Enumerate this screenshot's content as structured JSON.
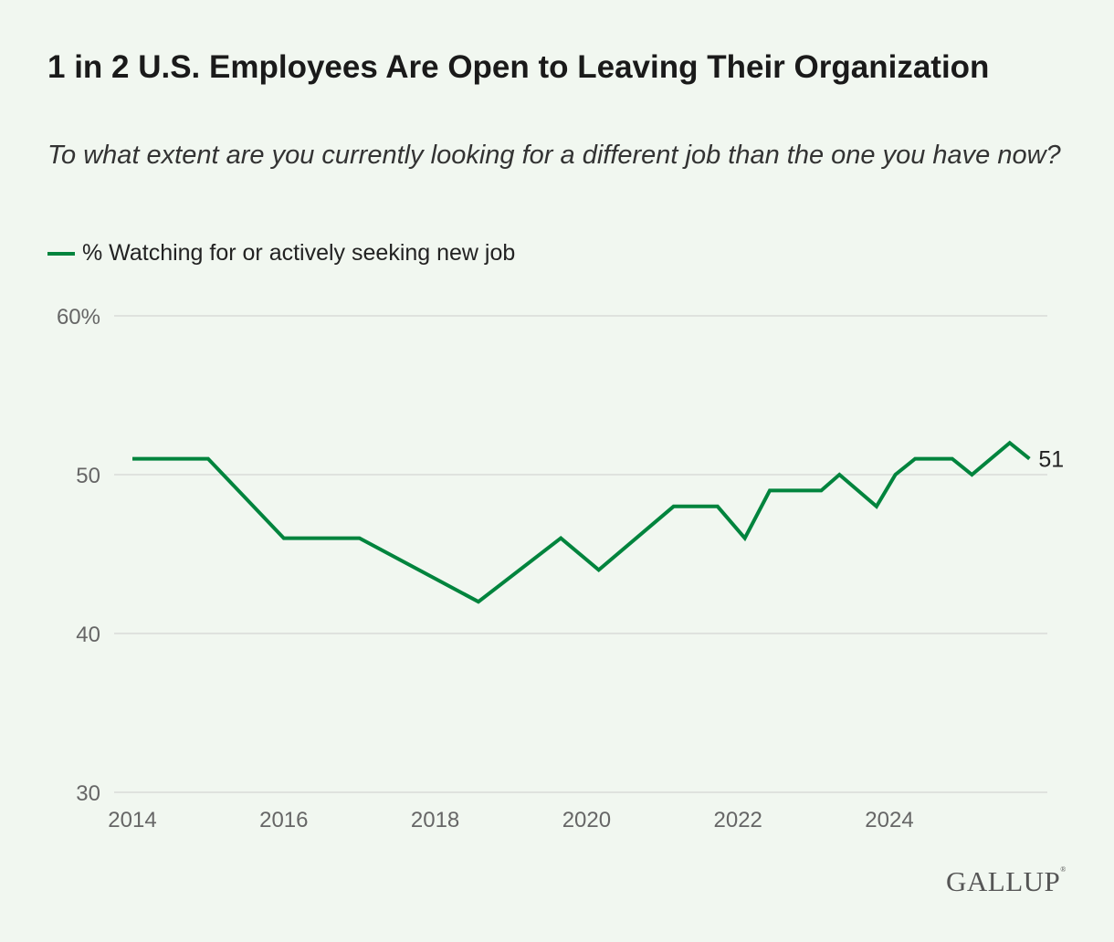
{
  "title": "1 in 2 U.S. Employees Are Open to Leaving Their Organization",
  "subtitle": "To what extent are you currently looking for a different job than the one you have now?",
  "logo": "GALLUP",
  "colors": {
    "series": "#00843d",
    "background": "#f1f7f0",
    "grid": "#d9dcd8"
  },
  "chart_data": {
    "type": "line",
    "title": "1 in 2 U.S. Employees Are Open to Leaving Their Organization",
    "legend": "top-left",
    "grid": true,
    "xlim": [
      2014,
      2026
    ],
    "ylim": [
      30,
      60
    ],
    "x_ticks": [
      2014,
      2016,
      2018,
      2020,
      2022,
      2024
    ],
    "y_ticks": [
      {
        "value": 60,
        "label": "60%"
      },
      {
        "value": 50,
        "label": "50"
      },
      {
        "value": 40,
        "label": "40"
      },
      {
        "value": 30,
        "label": "30"
      }
    ],
    "series": [
      {
        "name": "% Watching for or actively seeking new job",
        "x": [
          2014.0,
          2015.0,
          2016.0,
          2017.0,
          2018.57,
          2019.66,
          2020.16,
          2021.15,
          2021.73,
          2022.09,
          2022.42,
          2023.1,
          2023.34,
          2023.83,
          2024.08,
          2024.34,
          2024.83,
          2025.09,
          2025.59,
          2025.85
        ],
        "values": [
          51,
          51,
          46,
          46,
          42,
          46,
          44,
          48,
          48,
          46,
          49,
          49,
          50,
          48,
          50,
          51,
          51,
          50,
          52,
          51
        ],
        "end_label": "51"
      }
    ]
  }
}
